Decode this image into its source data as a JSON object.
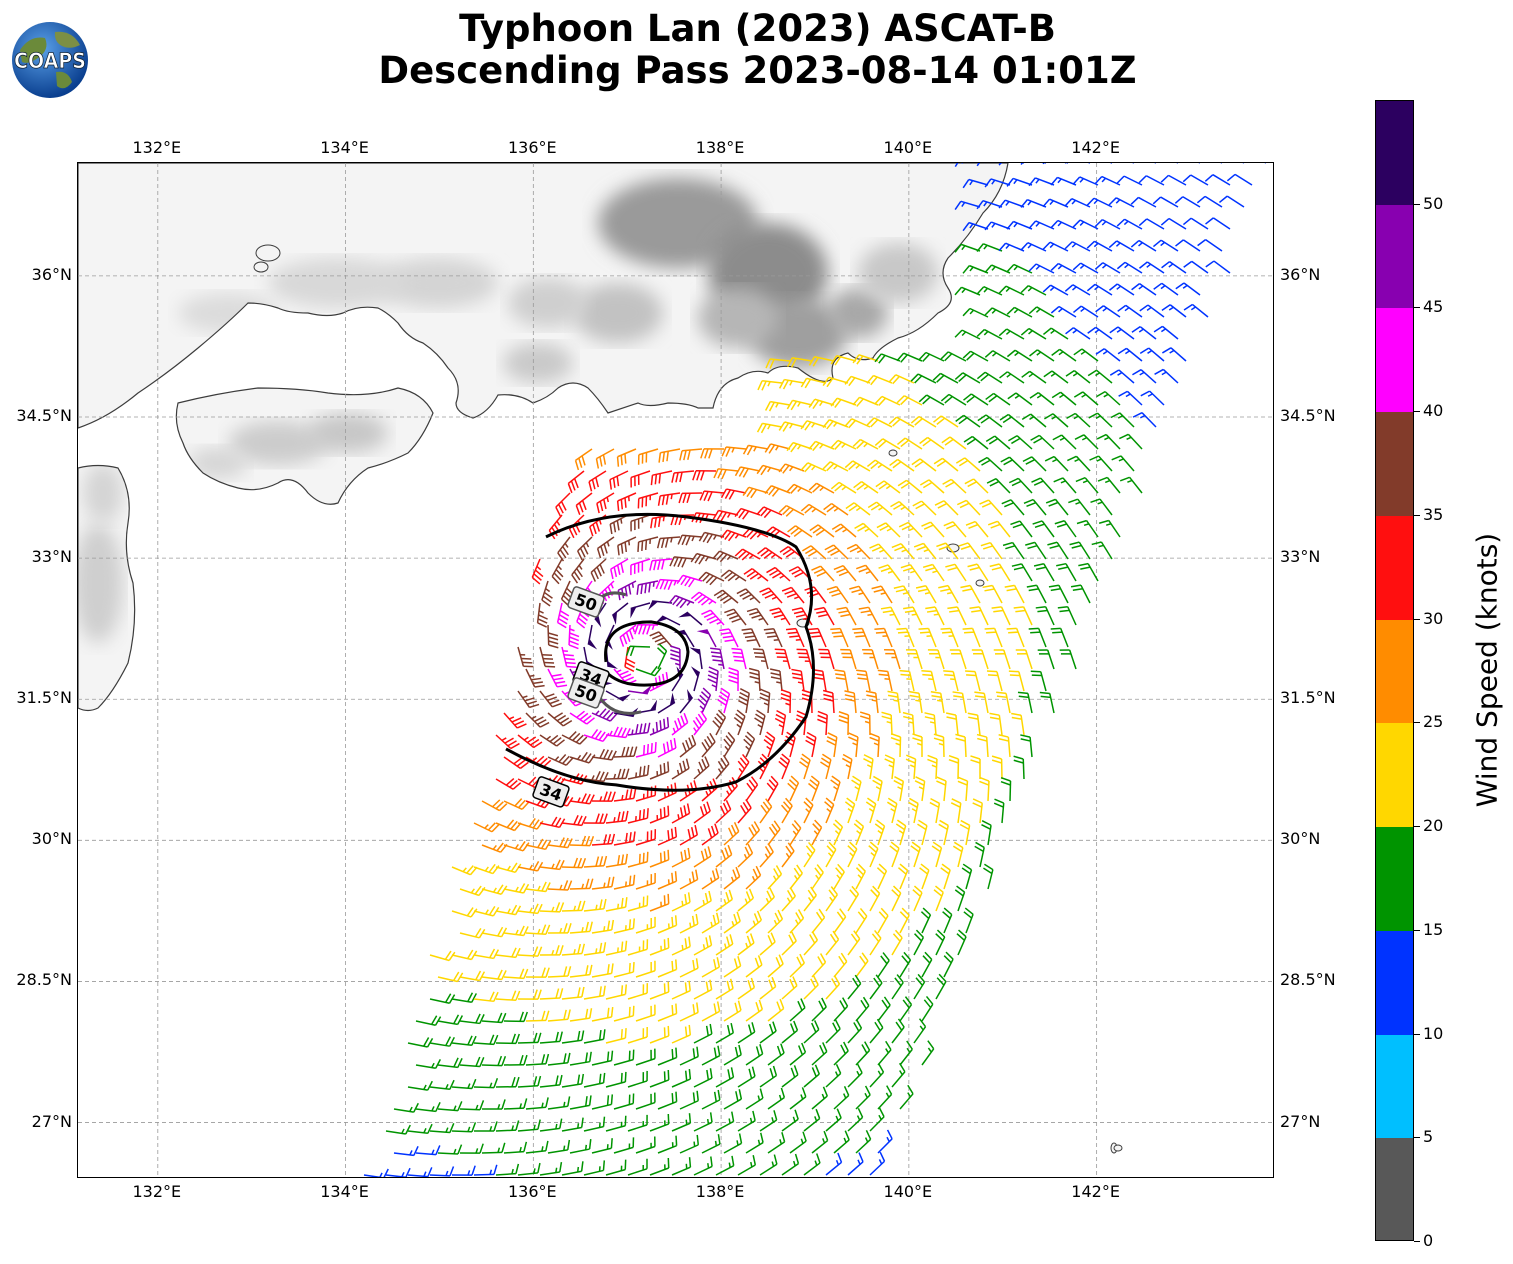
{
  "title": {
    "line1": "Typhoon Lan (2023) ASCAT-B",
    "line2": "Descending Pass 2023-08-14 01:01Z"
  },
  "logo": {
    "text": "COAPS",
    "icon": "globe-logo-icon"
  },
  "map": {
    "lon_labels": [
      "132°E",
      "134°E",
      "136°E",
      "138°E",
      "140°E",
      "142°E"
    ],
    "lat_labels": [
      "36°N",
      "34.5°N",
      "33°N",
      "31.5°N",
      "30°N",
      "28.5°N",
      "27°N"
    ],
    "lon_values": [
      132,
      134,
      136,
      138,
      140,
      142
    ],
    "lat_values": [
      36,
      34.5,
      33,
      31.5,
      30,
      28.5,
      27
    ],
    "extent": {
      "lon_min": 131.15,
      "lon_max": 143.9,
      "lat_min": 26.4,
      "lat_max": 37.2
    },
    "gridlines": true,
    "storm_center": {
      "lon": 137.2,
      "lat": 31.95
    },
    "contours": [
      {
        "label": "34",
        "color": "#000000"
      },
      {
        "label": "50",
        "color": "#555555"
      },
      {
        "label": "34",
        "color": "#000000"
      },
      {
        "label": "50",
        "color": "#555555"
      }
    ]
  },
  "colorbar": {
    "label": "Wind Speed (knots)",
    "ticks": [
      "0",
      "5",
      "10",
      "15",
      "20",
      "25",
      "30",
      "35",
      "40",
      "45",
      "50"
    ],
    "colors": [
      "#585858",
      "#00bfff",
      "#0033ff",
      "#009400",
      "#ffd700",
      "#ff8c00",
      "#ff0f0f",
      "#823b2a",
      "#ff00ff",
      "#8800b0",
      "#2c0060"
    ]
  }
}
